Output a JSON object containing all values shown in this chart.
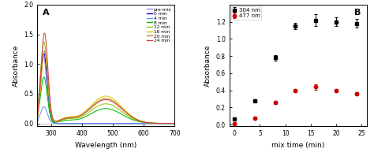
{
  "panel_A": {
    "label": "A",
    "xlabel": "Wavelength (nm)",
    "ylabel": "Absorbance",
    "xlim": [
      255,
      700
    ],
    "ylim": [
      -0.05,
      2.0
    ],
    "yticks": [
      0.0,
      0.5,
      1.0,
      1.5,
      2.0
    ],
    "xticks": [
      300,
      400,
      500,
      600,
      700
    ],
    "spectra_colors": [
      "#9988FF",
      "#0000DD",
      "#6699FF",
      "#00BB00",
      "#88CC00",
      "#DDCC00",
      "#CC8822",
      "#CC4444"
    ],
    "spectra_labels": [
      "pre-mix",
      "0 min",
      "4 min",
      "8 min",
      "12 min",
      "16 min",
      "20 min",
      "24 min"
    ],
    "spectra_peak1_wl": [
      274,
      276,
      276,
      276,
      276,
      278,
      278,
      278
    ],
    "spectra_peak1_abs": [
      1.15,
      1.18,
      0.28,
      0.78,
      1.37,
      1.22,
      1.22,
      1.52
    ],
    "spectra_peak1_sig": [
      11,
      11,
      11,
      11,
      11,
      11,
      11,
      11
    ],
    "spectra_peak2_wl": [
      null,
      null,
      null,
      477,
      477,
      477,
      477,
      477
    ],
    "spectra_peak2_abs": [
      null,
      null,
      null,
      0.25,
      0.33,
      0.46,
      0.42,
      0.4
    ],
    "spectra_peak2_sig": [
      null,
      null,
      null,
      52,
      52,
      52,
      52,
      52
    ],
    "spectra_shoulder_wl": [
      null,
      null,
      null,
      350,
      350,
      350,
      350,
      350
    ],
    "spectra_shoulder_abs": [
      null,
      null,
      null,
      0.04,
      0.06,
      0.08,
      0.07,
      0.07
    ]
  },
  "panel_B": {
    "label": "B",
    "xlabel": "mix time (min)",
    "ylabel": "Absorbance",
    "xlim": [
      -1,
      26
    ],
    "ylim": [
      -0.02,
      1.4
    ],
    "yticks": [
      0.0,
      0.2,
      0.4,
      0.6,
      0.8,
      1.0,
      1.2
    ],
    "xticks": [
      0,
      5,
      10,
      15,
      20,
      25
    ],
    "series": [
      {
        "label": "304 nm",
        "color": "black",
        "marker": "s",
        "x": [
          0,
          4,
          8,
          12,
          16,
          20,
          24
        ],
        "y": [
          0.07,
          0.28,
          0.78,
          1.15,
          1.22,
          1.2,
          1.18
        ],
        "yerr": [
          0.015,
          0.02,
          0.03,
          0.04,
          0.07,
          0.05,
          0.05
        ]
      },
      {
        "label": "477 nm",
        "color": "#CC0000",
        "marker": "o",
        "x": [
          0,
          4,
          8,
          12,
          16,
          20,
          24
        ],
        "y": [
          0.01,
          0.08,
          0.26,
          0.4,
          0.44,
          0.4,
          0.36
        ],
        "yerr": [
          0.005,
          0.012,
          0.02,
          0.02,
          0.03,
          0.02,
          0.02
        ]
      }
    ]
  },
  "figure_bg": "#ffffff"
}
